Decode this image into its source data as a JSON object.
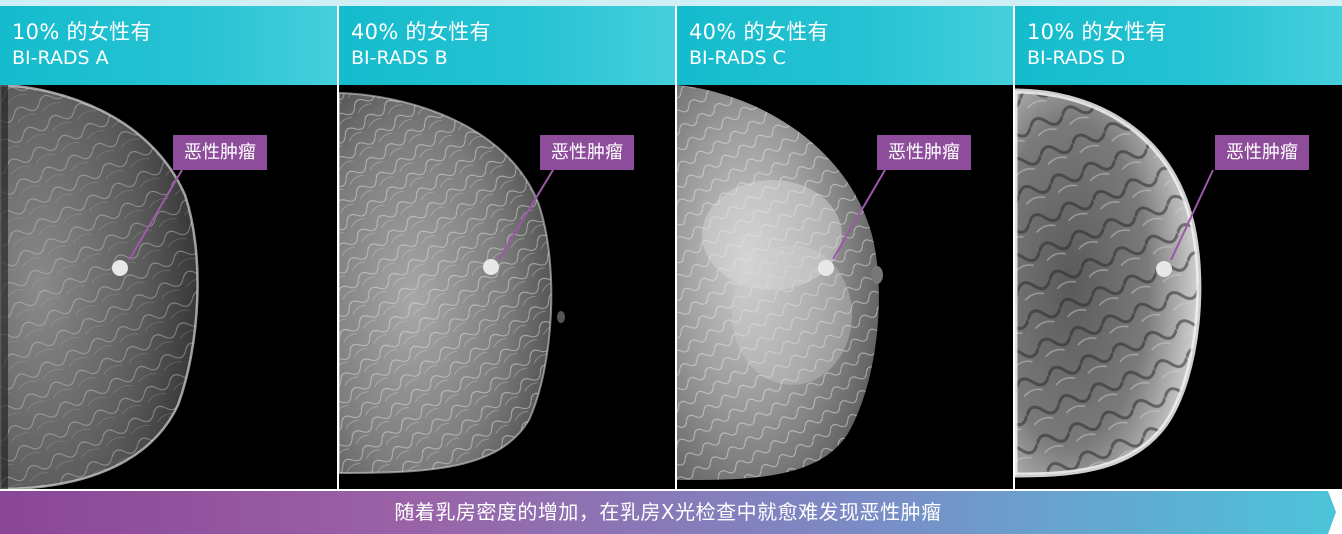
{
  "panels": [
    {
      "stat": "10% 的女性有",
      "category": "BI-RADS A",
      "tumor_label": "恶性肿瘤"
    },
    {
      "stat": "40% 的女性有",
      "category": "BI-RADS B",
      "tumor_label": "恶性肿瘤"
    },
    {
      "stat": "40% 的女性有",
      "category": "BI-RADS C",
      "tumor_label": "恶性肿瘤"
    },
    {
      "stat": "10% 的女性有",
      "category": "BI-RADS D",
      "tumor_label": "恶性肿瘤"
    }
  ],
  "footer": {
    "caption": "随着乳房密度的增加，在乳房X光检查中就愈难发现恶性肿瘤"
  },
  "colors": {
    "header_teal": "#25c2d3",
    "label_purple": "#8e4d9a",
    "footer_start": "#8a4696",
    "footer_end": "#4cc4d9"
  }
}
